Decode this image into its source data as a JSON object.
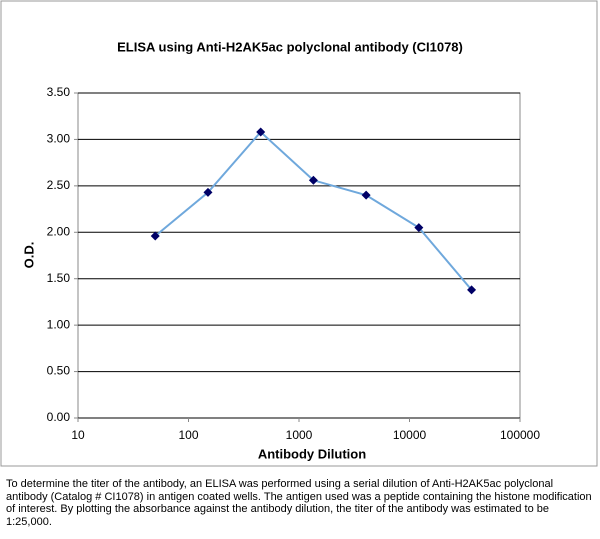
{
  "chart_data": {
    "type": "line",
    "title": "ELISA using Anti-H2AK5ac polyclonal antibody (CI1078)",
    "xlabel": "Antibody Dilution",
    "ylabel": "O.D.",
    "x": [
      50,
      150,
      450,
      1350,
      4050,
      12150,
      36450
    ],
    "series": [
      {
        "name": "O.D.",
        "color": "#6fa8dc",
        "marker_color": "#000066",
        "values": [
          1.96,
          2.43,
          3.08,
          2.56,
          2.4,
          2.05,
          1.38
        ]
      }
    ],
    "xscale": "log",
    "xlim": [
      10,
      100000
    ],
    "xticks": [
      10,
      100,
      1000,
      10000,
      100000
    ],
    "ylim": [
      0,
      3.5
    ],
    "yticks": [
      {
        "value": 0,
        "label": "0.00"
      },
      {
        "value": 0.5,
        "label": "0.50"
      },
      {
        "value": 1,
        "label": "1.00"
      },
      {
        "value": 1.5,
        "label": "1.50"
      },
      {
        "value": 2,
        "label": "2.00"
      },
      {
        "value": 2.5,
        "label": "2.50"
      },
      {
        "value": 3,
        "label": "3.00"
      },
      {
        "value": 3.5,
        "label": "3.50"
      }
    ],
    "grid": true,
    "caption": "To determine the titer of the antibody, an ELISA was performed using a serial dilution of Anti-H2AK5ac polyclonal antibody (Catalog # CI1078) in antigen coated wells. The antigen used was a peptide containing the histone modification of interest. By plotting the absorbance against the antibody dilution, the titer of the antibody was estimated to be 1:25,000."
  }
}
